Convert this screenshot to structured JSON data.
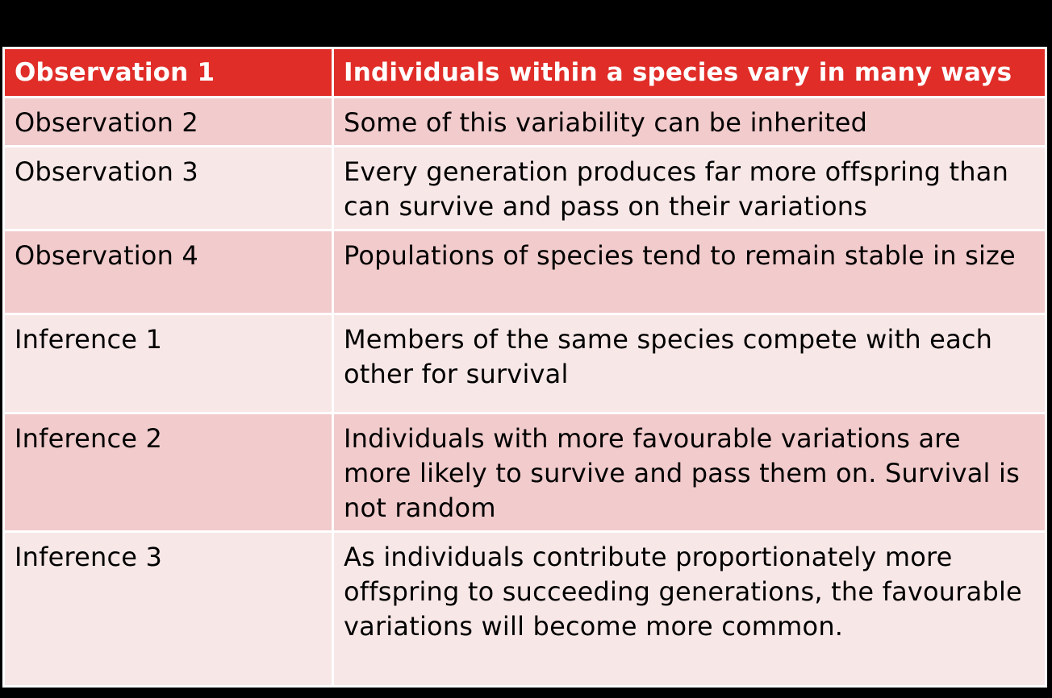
{
  "table": {
    "header": {
      "label": "Observation 1",
      "text": "Individuals within a species vary in many ways"
    },
    "rows": [
      {
        "label": "Observation 2",
        "text": "Some of this variability can be inherited"
      },
      {
        "label": "Observation 3",
        "text": "Every generation produces far more offspring than can survive and pass on their variations"
      },
      {
        "label": "Observation 4",
        "text": "Populations of species tend to remain stable in size"
      },
      {
        "label": "Inference 1",
        "text": "Members of the same species compete with each other for survival"
      },
      {
        "label": "Inference 2",
        "text": "Individuals with more favourable variations are more likely to survive and pass them on.  Survival is not random"
      },
      {
        "label": "Inference 3",
        "text": "As individuals contribute proportionately more offspring to succeeding generations, the favourable variations will become more common."
      }
    ]
  },
  "colors": {
    "background": "#000000",
    "header_fill": "#e02d28",
    "row_odd_fill": "#f2cbcc",
    "row_even_fill": "#f8e7e7",
    "border": "#ffffff"
  }
}
